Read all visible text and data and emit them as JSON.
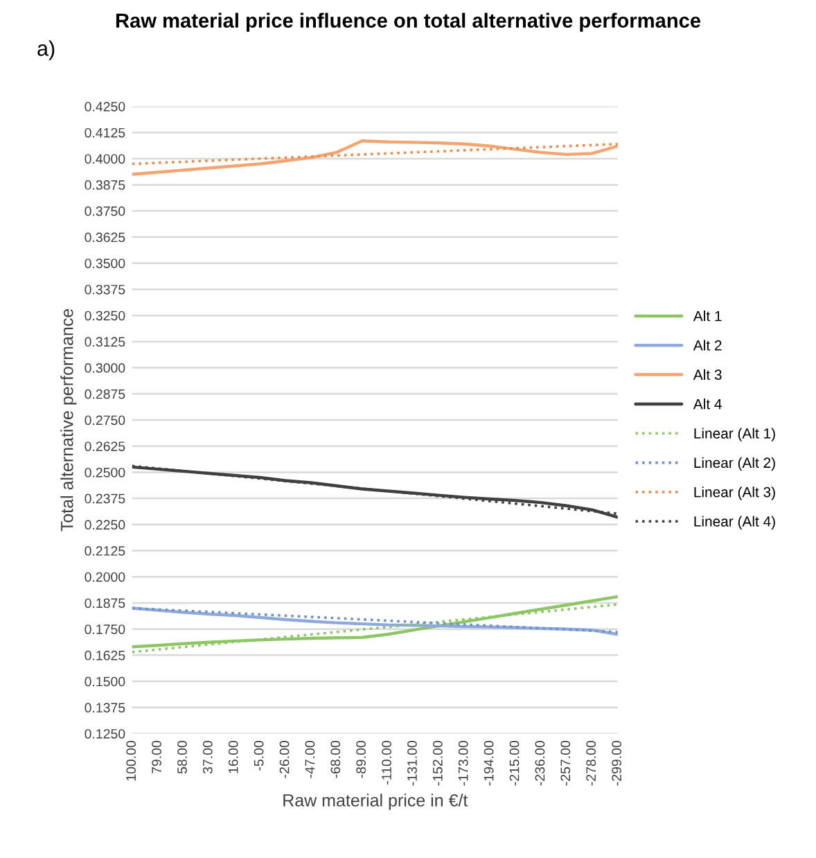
{
  "chart_data": {
    "type": "line",
    "title": "Raw material price influence on total alternative performance",
    "xlabel": "Raw material price in €/t",
    "ylabel": "Total alternative performance",
    "annotations": [
      "a)"
    ],
    "categories": [
      "100.00",
      "79.00",
      "58.00",
      "37.00",
      "16.00",
      "-5.00",
      "-26.00",
      "-47.00",
      "-68.00",
      "-89.00",
      "-110.00",
      "-131.00",
      "-152.00",
      "-173.00",
      "-194.00",
      "-215.00",
      "-236.00",
      "-257.00",
      "-278.00",
      "-299.00"
    ],
    "series": [
      {
        "name": "Alt 1",
        "color": "#8cc665",
        "line_style": "solid",
        "values": [
          0.1665,
          0.1672,
          0.168,
          0.1687,
          0.1693,
          0.1698,
          0.1702,
          0.1706,
          0.1708,
          0.171,
          0.1725,
          0.1745,
          0.1765,
          0.1785,
          0.1805,
          0.1825,
          0.1845,
          0.1865,
          0.1885,
          0.1905
        ]
      },
      {
        "name": "Alt 2",
        "color": "#8eaadb",
        "line_style": "solid",
        "values": [
          0.185,
          0.184,
          0.183,
          0.1822,
          0.1815,
          0.1805,
          0.1795,
          0.1787,
          0.178,
          0.1775,
          0.177,
          0.1768,
          0.1765,
          0.1762,
          0.176,
          0.1757,
          0.1753,
          0.175,
          0.1745,
          0.1725
        ]
      },
      {
        "name": "Alt 3",
        "color": "#f4a46f",
        "line_style": "solid",
        "values": [
          0.3925,
          0.3935,
          0.3945,
          0.3955,
          0.3965,
          0.3975,
          0.399,
          0.4005,
          0.403,
          0.4085,
          0.408,
          0.4078,
          0.4075,
          0.407,
          0.406,
          0.4045,
          0.403,
          0.402,
          0.4025,
          0.406
        ]
      },
      {
        "name": "Alt 4",
        "color": "#404040",
        "line_style": "solid",
        "values": [
          0.2525,
          0.2515,
          0.2505,
          0.2495,
          0.2485,
          0.2475,
          0.246,
          0.245,
          0.2435,
          0.242,
          0.241,
          0.24,
          0.239,
          0.238,
          0.2372,
          0.2365,
          0.2355,
          0.234,
          0.232,
          0.2285
        ]
      },
      {
        "name": "Linear (Alt 1)",
        "color": "#8cc665",
        "line_style": "dotted",
        "values": [
          0.164,
          0.1652,
          0.1664,
          0.1676,
          0.1688,
          0.17,
          0.1712,
          0.1724,
          0.1736,
          0.1748,
          0.176,
          0.1772,
          0.1784,
          0.1796,
          0.1808,
          0.182,
          0.1832,
          0.1844,
          0.1856,
          0.1868
        ]
      },
      {
        "name": "Linear (Alt 2)",
        "color": "#6f8fd0",
        "line_style": "dotted",
        "values": [
          0.185,
          0.1844,
          0.1838,
          0.1832,
          0.1826,
          0.182,
          0.1814,
          0.1808,
          0.1802,
          0.1796,
          0.179,
          0.1784,
          0.1778,
          0.1772,
          0.1766,
          0.176,
          0.1754,
          0.1748,
          0.1742,
          0.1736
        ]
      },
      {
        "name": "Linear (Alt 3)",
        "color": "#f08a4b",
        "line_style": "dotted",
        "values": [
          0.3975,
          0.398,
          0.3985,
          0.399,
          0.3995,
          0.4,
          0.4005,
          0.401,
          0.4015,
          0.402,
          0.4025,
          0.403,
          0.4035,
          0.404,
          0.4045,
          0.405,
          0.4055,
          0.406,
          0.4065,
          0.407
        ]
      },
      {
        "name": "Linear (Alt 4)",
        "color": "#404040",
        "line_style": "dotted",
        "values": [
          0.253,
          0.2518,
          0.2506,
          0.2494,
          0.2482,
          0.247,
          0.2458,
          0.2446,
          0.2434,
          0.2422,
          0.241,
          0.2398,
          0.2386,
          0.2374,
          0.2362,
          0.235,
          0.2338,
          0.2326,
          0.2314,
          0.2302
        ]
      }
    ],
    "ylim": [
      0.125,
      0.425
    ],
    "yticks": [
      {
        "value": 0.125,
        "label": "0.1250"
      },
      {
        "value": 0.1375,
        "label": "0.1375"
      },
      {
        "value": 0.15,
        "label": "0.1500"
      },
      {
        "value": 0.1625,
        "label": "0.1625"
      },
      {
        "value": 0.175,
        "label": "0.1750"
      },
      {
        "value": 0.1875,
        "label": "0.1875"
      },
      {
        "value": 0.2,
        "label": "0.2000"
      },
      {
        "value": 0.2125,
        "label": "0.2125"
      },
      {
        "value": 0.225,
        "label": "0.2250"
      },
      {
        "value": 0.2375,
        "label": "0.2375"
      },
      {
        "value": 0.25,
        "label": "0.2500"
      },
      {
        "value": 0.2625,
        "label": "0.2625"
      },
      {
        "value": 0.275,
        "label": "0.2750"
      },
      {
        "value": 0.2875,
        "label": "0.2875"
      },
      {
        "value": 0.3,
        "label": "0.3000"
      },
      {
        "value": 0.3125,
        "label": "0.3125"
      },
      {
        "value": 0.325,
        "label": "0.3250"
      },
      {
        "value": 0.3375,
        "label": "0.3375"
      },
      {
        "value": 0.35,
        "label": "0.3500"
      },
      {
        "value": 0.3625,
        "label": "0.3625"
      },
      {
        "value": 0.375,
        "label": "0.3750"
      },
      {
        "value": 0.3875,
        "label": "0.3875"
      },
      {
        "value": 0.4,
        "label": "0.4000"
      },
      {
        "value": 0.4125,
        "label": "0.4125"
      },
      {
        "value": 0.425,
        "label": "0.4250"
      }
    ],
    "grid": "y",
    "legend": "right",
    "marker": "none"
  }
}
